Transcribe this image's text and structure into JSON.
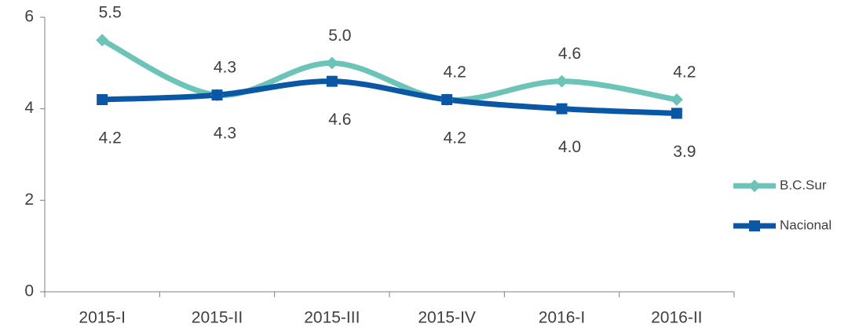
{
  "chart_data": {
    "type": "line",
    "categories": [
      "2015-I",
      "2015-II",
      "2015-III",
      "2015-IV",
      "2016-I",
      "2016-II"
    ],
    "series": [
      {
        "name": "B.C.Sur",
        "color": "#6cc3b8",
        "marker": "diamond",
        "values": [
          5.5,
          4.3,
          5.0,
          4.2,
          4.6,
          4.2
        ],
        "value_labels": [
          "5.5",
          "4.3",
          "5.0",
          "4.2",
          "4.6",
          "4.2"
        ]
      },
      {
        "name": "Nacional",
        "color": "#0a57a5",
        "marker": "square",
        "values": [
          4.2,
          4.3,
          4.6,
          4.2,
          4.0,
          3.9
        ],
        "value_labels": [
          "4.2",
          "4.3",
          "4.6",
          "4.2",
          "4.0",
          "3.9"
        ]
      }
    ],
    "ylim": [
      0,
      6
    ],
    "yticks": [
      0,
      2,
      4,
      6
    ],
    "grid": false,
    "legend": "right"
  }
}
